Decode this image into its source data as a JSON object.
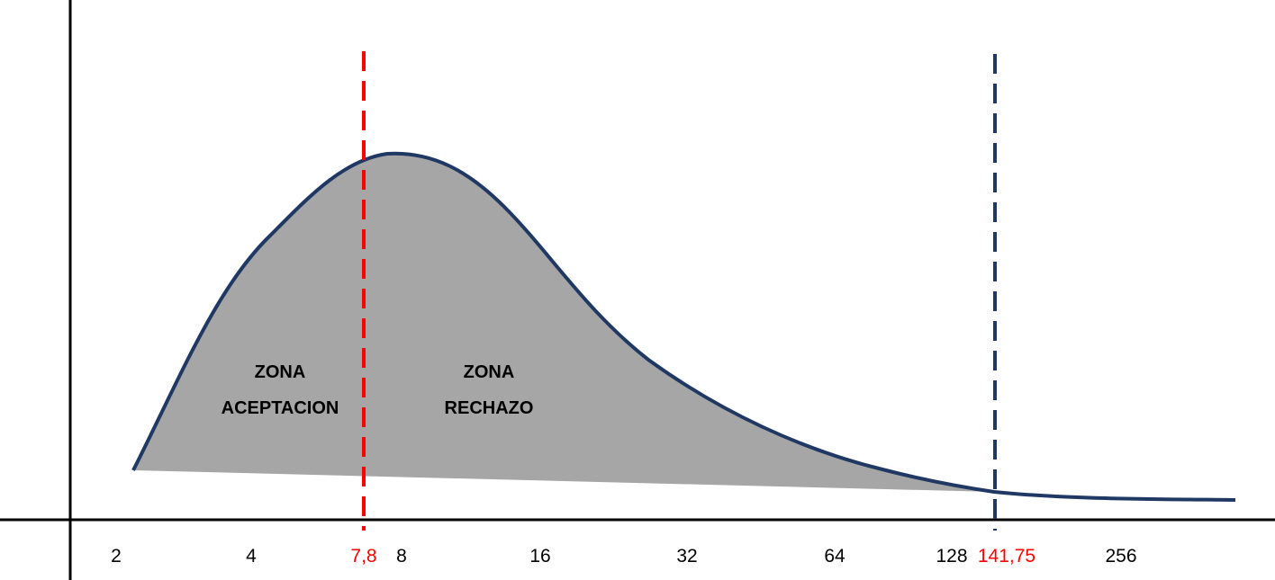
{
  "axis": {
    "tick_labels": [
      "2",
      "4",
      "8",
      "16",
      "32",
      "64",
      "128",
      "256"
    ]
  },
  "critical_value": {
    "label": "7,8",
    "color": "#ff0000"
  },
  "observed_value": {
    "label": "141,75",
    "label_color": "#ff0000",
    "line_color": "#1f3864"
  },
  "zones": {
    "acceptance": {
      "line1": "ZONA",
      "line2": "ACEPTACION"
    },
    "rejection": {
      "line1": "ZONA",
      "line2": "RECHAZO"
    }
  },
  "colors": {
    "curve": "#203864",
    "fill": "#a6a6a6",
    "axis": "#000000"
  }
}
